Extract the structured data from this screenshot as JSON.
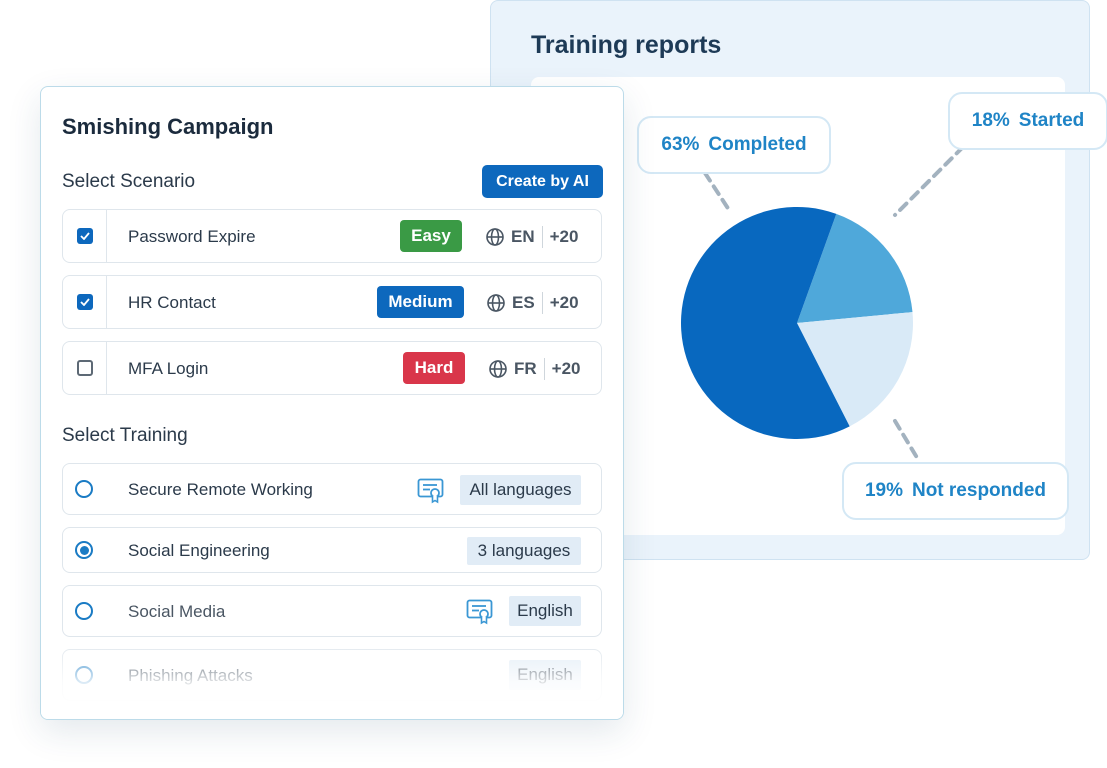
{
  "reports": {
    "title": "Training reports",
    "callouts": [
      {
        "percent": "63%",
        "label": "Completed"
      },
      {
        "percent": "18%",
        "label": "Started"
      },
      {
        "percent": "19%",
        "label": "Not responded"
      }
    ],
    "colors": {
      "completed": "#0868bf",
      "started": "#4fa8da",
      "not_responded": "#d9eaf7"
    }
  },
  "chart_data": {
    "type": "pie",
    "slices": [
      {
        "label": "Completed",
        "value": 63
      },
      {
        "label": "Started",
        "value": 18
      },
      {
        "label": "Not responded",
        "value": 19
      }
    ]
  },
  "campaign": {
    "title": "Smishing Campaign",
    "scenario_label": "Select Scenario",
    "create_ai_label": "Create by AI",
    "scenarios": [
      {
        "name": "Password Expire",
        "difficulty": "Easy",
        "difficulty_color": "#3a9a45",
        "lang": "EN",
        "more": "+20",
        "checked": true
      },
      {
        "name": "HR Contact",
        "difficulty": "Medium",
        "difficulty_color": "#0d68bd",
        "lang": "ES",
        "more": "+20",
        "checked": true
      },
      {
        "name": "MFA Login",
        "difficulty": "Hard",
        "difficulty_color": "#d9364a",
        "lang": "FR",
        "more": "+20",
        "checked": false
      }
    ],
    "training_label": "Select Training",
    "trainings": [
      {
        "name": "Secure Remote Working",
        "languages": "All languages",
        "certificate": true,
        "selected": false
      },
      {
        "name": "Social Engineering",
        "languages": "3 languages",
        "certificate": false,
        "selected": true
      },
      {
        "name": "Social Media",
        "languages": "English",
        "certificate": true,
        "selected": false
      },
      {
        "name": "Phishing Attacks",
        "languages": "English",
        "certificate": false,
        "selected": false
      }
    ]
  }
}
